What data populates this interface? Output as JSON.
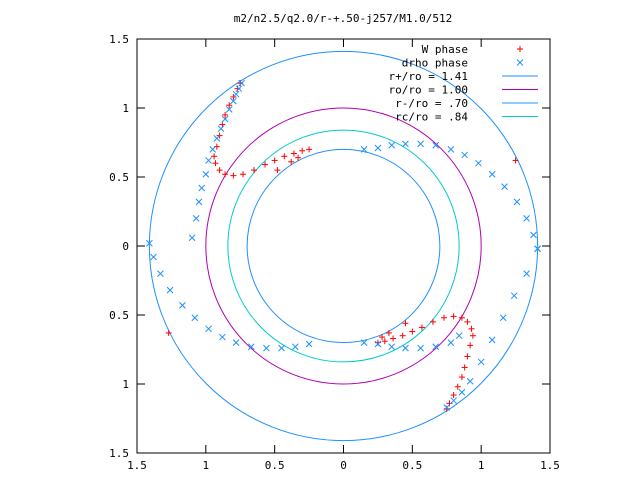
{
  "chart_data": {
    "type": "scatter",
    "title": "m2/n2.5/q2.0/r-+.50-j257/M1.0/512",
    "xlabel": "",
    "ylabel": "",
    "xlim": [
      -1.5,
      1.5
    ],
    "ylim": [
      -1.5,
      1.5
    ],
    "x_tick_labels": [
      "1.5",
      "1",
      "0.5",
      "0",
      "0.5",
      "1",
      "1.5"
    ],
    "y_tick_labels": [
      "1.5",
      "1",
      "0.5",
      "0",
      "0.5",
      "1",
      "1.5"
    ],
    "x_ticks": [
      -1.5,
      -1,
      -0.5,
      0,
      0.5,
      1,
      1.5
    ],
    "y_ticks": [
      1.5,
      1,
      0.5,
      0,
      -0.5,
      -1,
      -1.5
    ],
    "grid": false,
    "legend_position": "top-right",
    "legend": [
      {
        "label": "W phase",
        "kind": "plus",
        "color": "#ff0000"
      },
      {
        "label": "drho phase",
        "kind": "cross",
        "color": "#1e90ff"
      },
      {
        "label": "r+/ro = 1.41",
        "kind": "line",
        "color": "#1e90ff"
      },
      {
        "label": "ro/ro = 1.00",
        "kind": "line",
        "color": "#b000b0"
      },
      {
        "label": "r-/ro = .70",
        "kind": "line",
        "color": "#1e90ff"
      },
      {
        "label": "rc/ro = .84",
        "kind": "line",
        "color": "#00cccc"
      }
    ],
    "circles": [
      {
        "r": 1.41,
        "color": "#1e90ff"
      },
      {
        "r": 1.0,
        "color": "#b000b0"
      },
      {
        "r": 0.7,
        "color": "#1e90ff"
      },
      {
        "r": 0.84,
        "color": "#00cccc"
      }
    ],
    "series": [
      {
        "name": "W phase",
        "color": "#ff0000",
        "marker": "plus",
        "points": [
          [
            -0.75,
            1.18
          ],
          [
            -0.77,
            1.14
          ],
          [
            -0.8,
            1.08
          ],
          [
            -0.83,
            1.02
          ],
          [
            -0.86,
            0.95
          ],
          [
            -0.88,
            0.88
          ],
          [
            -0.9,
            0.8
          ],
          [
            -0.92,
            0.72
          ],
          [
            -0.94,
            0.65
          ],
          [
            -0.93,
            0.6
          ],
          [
            -0.9,
            0.55
          ],
          [
            -0.86,
            0.52
          ],
          [
            -0.8,
            0.51
          ],
          [
            -0.73,
            0.52
          ],
          [
            -0.65,
            0.55
          ],
          [
            -0.57,
            0.59
          ],
          [
            -0.5,
            0.62
          ],
          [
            -0.43,
            0.65
          ],
          [
            -0.36,
            0.67
          ],
          [
            -0.3,
            0.69
          ],
          [
            -0.25,
            0.7
          ],
          [
            -0.48,
            0.55
          ],
          [
            -0.38,
            0.61
          ],
          [
            -0.33,
            0.64
          ],
          [
            -1.27,
            -0.63
          ],
          [
            1.25,
            0.62
          ],
          [
            0.75,
            -1.18
          ],
          [
            0.77,
            -1.14
          ],
          [
            0.8,
            -1.08
          ],
          [
            0.83,
            -1.02
          ],
          [
            0.86,
            -0.95
          ],
          [
            0.88,
            -0.88
          ],
          [
            0.9,
            -0.8
          ],
          [
            0.92,
            -0.72
          ],
          [
            0.94,
            -0.65
          ],
          [
            0.93,
            -0.6
          ],
          [
            0.9,
            -0.55
          ],
          [
            0.86,
            -0.52
          ],
          [
            0.8,
            -0.51
          ],
          [
            0.73,
            -0.52
          ],
          [
            0.65,
            -0.55
          ],
          [
            0.57,
            -0.59
          ],
          [
            0.5,
            -0.62
          ],
          [
            0.43,
            -0.65
          ],
          [
            0.36,
            -0.67
          ],
          [
            0.3,
            -0.69
          ],
          [
            0.25,
            -0.7
          ],
          [
            0.45,
            -0.56
          ],
          [
            0.33,
            -0.63
          ],
          [
            0.28,
            -0.66
          ]
        ]
      },
      {
        "name": "drho phase",
        "color": "#1e90ff",
        "marker": "cross",
        "points": [
          [
            -1.41,
            0.02
          ],
          [
            -1.38,
            -0.08
          ],
          [
            -1.33,
            -0.2
          ],
          [
            -1.26,
            -0.32
          ],
          [
            -1.17,
            -0.43
          ],
          [
            -1.08,
            -0.52
          ],
          [
            -0.98,
            -0.6
          ],
          [
            -0.88,
            -0.66
          ],
          [
            -0.78,
            -0.7
          ],
          [
            -0.67,
            -0.73
          ],
          [
            -0.56,
            -0.74
          ],
          [
            -0.45,
            -0.74
          ],
          [
            -0.35,
            -0.73
          ],
          [
            -0.25,
            -0.71
          ],
          [
            -0.74,
            1.18
          ],
          [
            -0.76,
            1.14
          ],
          [
            -0.78,
            1.1
          ],
          [
            -0.8,
            1.05
          ],
          [
            -0.83,
            0.99
          ],
          [
            -0.86,
            0.92
          ],
          [
            -0.89,
            0.85
          ],
          [
            -0.92,
            0.78
          ],
          [
            -0.95,
            0.7
          ],
          [
            -0.98,
            0.62
          ],
          [
            -1.0,
            0.52
          ],
          [
            -1.03,
            0.42
          ],
          [
            -1.05,
            0.32
          ],
          [
            -1.07,
            0.2
          ],
          [
            -1.1,
            0.06
          ],
          [
            0.15,
            0.7
          ],
          [
            0.25,
            0.71
          ],
          [
            0.35,
            0.73
          ],
          [
            0.45,
            0.74
          ],
          [
            0.56,
            0.74
          ],
          [
            0.67,
            0.73
          ],
          [
            0.78,
            0.7
          ],
          [
            0.88,
            0.66
          ],
          [
            0.98,
            0.6
          ],
          [
            1.08,
            0.52
          ],
          [
            1.17,
            0.43
          ],
          [
            1.26,
            0.32
          ],
          [
            1.33,
            0.2
          ],
          [
            1.38,
            0.08
          ],
          [
            1.41,
            -0.02
          ],
          [
            1.41,
            -0.02
          ],
          [
            1.33,
            -0.2
          ],
          [
            1.24,
            -0.36
          ],
          [
            1.16,
            -0.52
          ],
          [
            1.08,
            -0.68
          ],
          [
            1.0,
            -0.84
          ],
          [
            0.92,
            -0.98
          ],
          [
            0.86,
            -1.06
          ],
          [
            0.8,
            -1.12
          ],
          [
            0.75,
            -1.17
          ],
          [
            0.15,
            -0.7
          ],
          [
            0.25,
            -0.71
          ],
          [
            0.35,
            -0.73
          ],
          [
            0.45,
            -0.74
          ],
          [
            0.56,
            -0.74
          ],
          [
            0.67,
            -0.73
          ],
          [
            0.78,
            -0.7
          ],
          [
            0.84,
            -0.65
          ]
        ]
      }
    ]
  }
}
